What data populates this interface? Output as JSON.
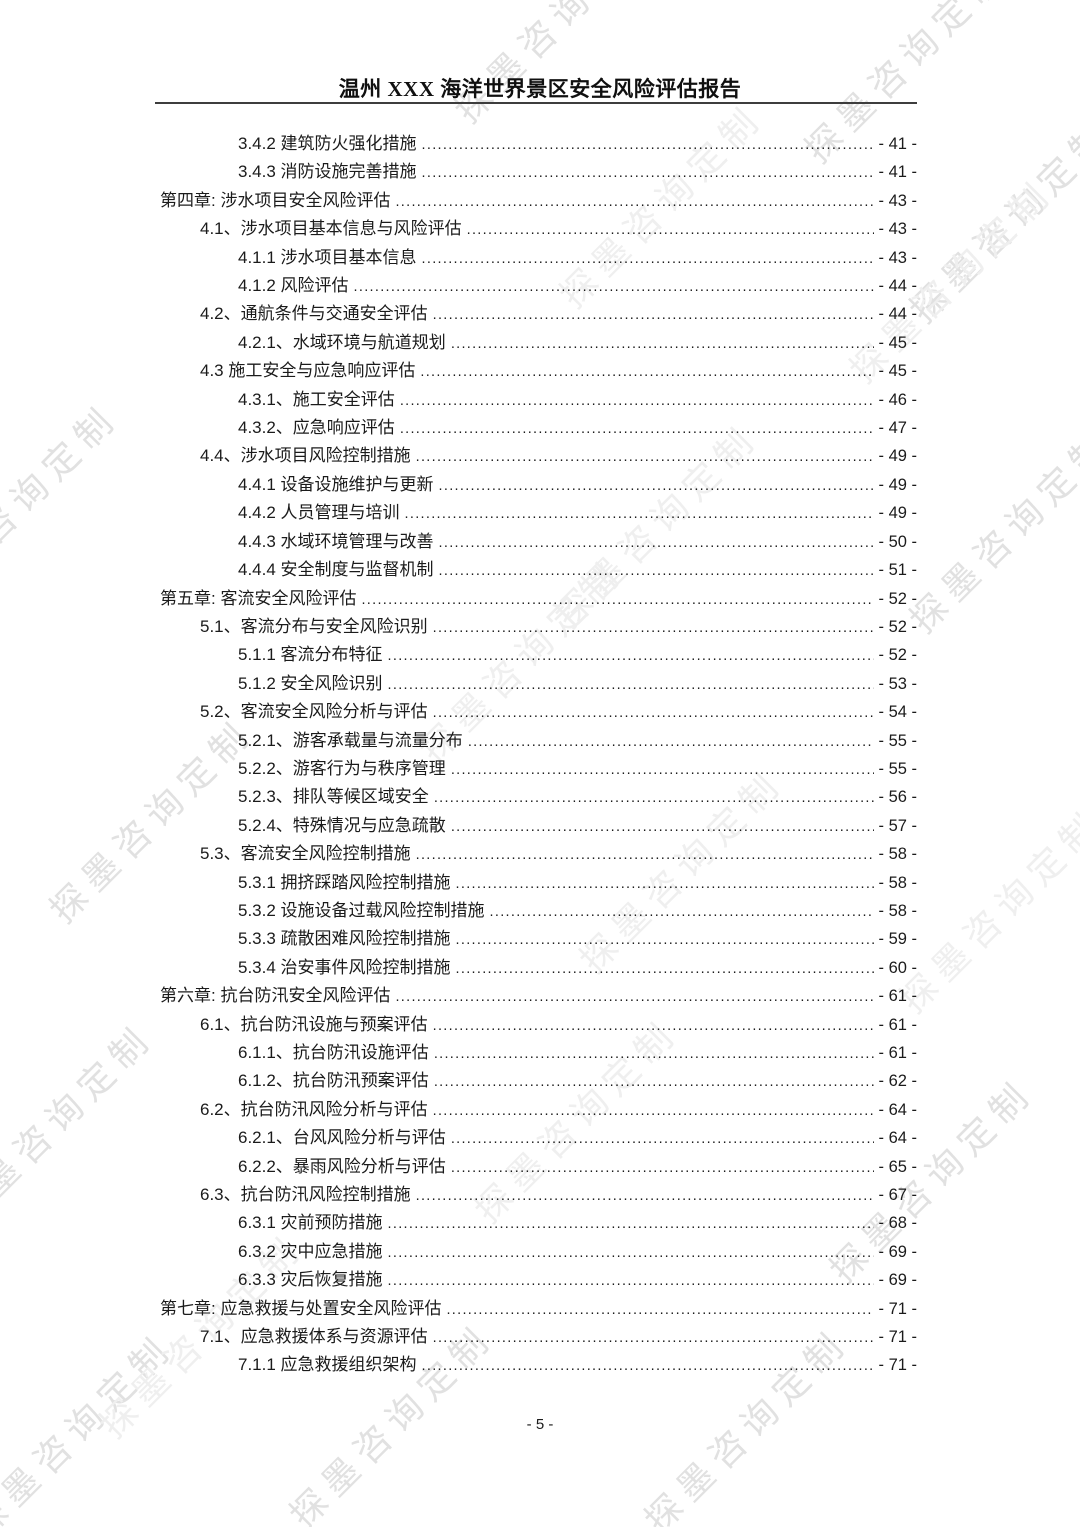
{
  "page": {
    "header_title": "温州 XXX 海洋世界景区安全风险评估报告",
    "footer_page_number": "- 5 -",
    "watermark_text": "探墨咨询定制"
  },
  "toc": {
    "entries": [
      {
        "level": 2,
        "label": "3.4.2 建筑防火强化措施",
        "page": "- 41 -"
      },
      {
        "level": 2,
        "label": "3.4.3 消防设施完善措施",
        "page": "- 41 -"
      },
      {
        "level": 0,
        "label": "第四章: 涉水项目安全风险评估",
        "page": "- 43 -"
      },
      {
        "level": 1,
        "label": "4.1、涉水项目基本信息与风险评估",
        "page": "- 43 -"
      },
      {
        "level": 2,
        "label": "4.1.1 涉水项目基本信息",
        "page": "- 43 -"
      },
      {
        "level": 2,
        "label": "4.1.2 风险评估",
        "page": "- 44 -"
      },
      {
        "level": 1,
        "label": "4.2、通航条件与交通安全评估",
        "page": "- 44 -"
      },
      {
        "level": 2,
        "label": "4.2.1、水域环境与航道规划",
        "page": "- 45 -"
      },
      {
        "level": 1,
        "label": "4.3 施工安全与应急响应评估",
        "page": "- 45 -"
      },
      {
        "level": 2,
        "label": "4.3.1、施工安全评估",
        "page": "- 46 -"
      },
      {
        "level": 2,
        "label": "4.3.2、应急响应评估",
        "page": "- 47 -"
      },
      {
        "level": 1,
        "label": "4.4、涉水项目风险控制措施",
        "page": "- 49 -"
      },
      {
        "level": 2,
        "label": "4.4.1 设备设施维护与更新",
        "page": "- 49 -"
      },
      {
        "level": 2,
        "label": "4.4.2 人员管理与培训",
        "page": "- 49 -"
      },
      {
        "level": 2,
        "label": "4.4.3 水域环境管理与改善",
        "page": "- 50 -"
      },
      {
        "level": 2,
        "label": "4.4.4 安全制度与监督机制",
        "page": "- 51 -"
      },
      {
        "level": 0,
        "label": "第五章: 客流安全风险评估",
        "page": "- 52 -"
      },
      {
        "level": 1,
        "label": "5.1、客流分布与安全风险识别",
        "page": "- 52 -"
      },
      {
        "level": 2,
        "label": "5.1.1 客流分布特征",
        "page": "- 52 -"
      },
      {
        "level": 2,
        "label": "5.1.2 安全风险识别",
        "page": "- 53 -"
      },
      {
        "level": 1,
        "label": "5.2、客流安全风险分析与评估",
        "page": "- 54 -"
      },
      {
        "level": 2,
        "label": "5.2.1、游客承载量与流量分布",
        "page": "- 55 -"
      },
      {
        "level": 2,
        "label": "5.2.2、游客行为与秩序管理",
        "page": "- 55 -"
      },
      {
        "level": 2,
        "label": "5.2.3、排队等候区域安全",
        "page": "- 56 -"
      },
      {
        "level": 2,
        "label": "5.2.4、特殊情况与应急疏散",
        "page": "- 57 -"
      },
      {
        "level": 1,
        "label": "5.3、客流安全风险控制措施",
        "page": "- 58 -"
      },
      {
        "level": 2,
        "label": "5.3.1 拥挤踩踏风险控制措施",
        "page": "- 58 -"
      },
      {
        "level": 2,
        "label": "5.3.2 设施设备过载风险控制措施",
        "page": "- 58 -"
      },
      {
        "level": 2,
        "label": "5.3.3 疏散困难风险控制措施",
        "page": "- 59 -"
      },
      {
        "level": 2,
        "label": "5.3.4 治安事件风险控制措施",
        "page": "- 60 -"
      },
      {
        "level": 0,
        "label": "第六章: 抗台防汛安全风险评估",
        "page": "- 61 -"
      },
      {
        "level": 1,
        "label": "6.1、抗台防汛设施与预案评估",
        "page": "- 61 -"
      },
      {
        "level": 2,
        "label": "6.1.1、抗台防汛设施评估",
        "page": "- 61 -"
      },
      {
        "level": 2,
        "label": "6.1.2、抗台防汛预案评估",
        "page": "- 62 -"
      },
      {
        "level": 1,
        "label": "6.2、抗台防汛风险分析与评估",
        "page": "- 64 -"
      },
      {
        "level": 2,
        "label": "6.2.1、台风风险分析与评估",
        "page": "- 64 -"
      },
      {
        "level": 2,
        "label": "6.2.2、暴雨风险分析与评估",
        "page": "- 65 -"
      },
      {
        "level": 1,
        "label": "6.3、抗台防汛风险控制措施",
        "page": "- 67 -"
      },
      {
        "level": 2,
        "label": "6.3.1 灾前预防措施",
        "page": "- 68 -"
      },
      {
        "level": 2,
        "label": "6.3.2 灾中应急措施",
        "page": "- 69 -"
      },
      {
        "level": 2,
        "label": "6.3.3 灾后恢复措施",
        "page": "- 69 -"
      },
      {
        "level": 0,
        "label": "第七章: 应急救援与处置安全风险评估",
        "page": "- 71 -"
      },
      {
        "level": 1,
        "label": "7.1、应急救援体系与资源评估",
        "page": "- 71 -"
      },
      {
        "level": 2,
        "label": "7.1.1 应急救援组织架构",
        "page": "- 71 -"
      }
    ]
  }
}
